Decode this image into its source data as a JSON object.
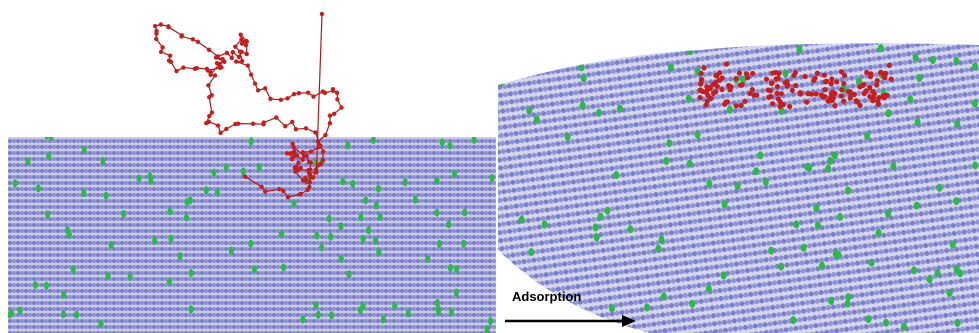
{
  "annotation": {
    "text": "Adsorption"
  }
}
